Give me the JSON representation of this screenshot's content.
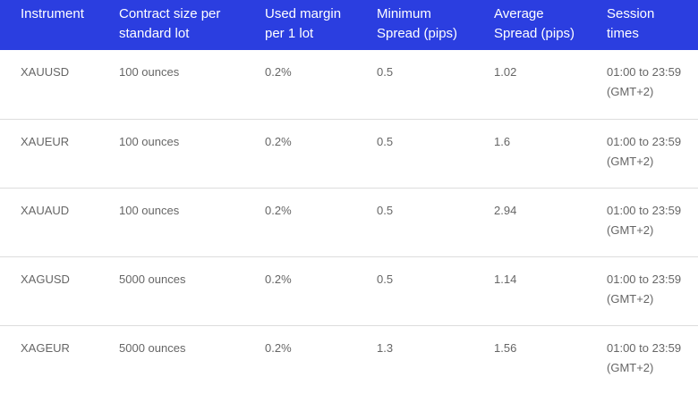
{
  "table": {
    "headers": [
      "Instrument",
      "Contract size per standard lot",
      "Used margin per 1 lot",
      "Minimum Spread (pips)",
      "Average Spread (pips)",
      "Session times"
    ],
    "rows": [
      [
        "XAUUSD",
        "100 ounces",
        "0.2%",
        "0.5",
        "1.02",
        "01:00 to 23:59 (GMT+2)"
      ],
      [
        "XAUEUR",
        "100 ounces",
        "0.2%",
        "0.5",
        "1.6",
        "01:00 to 23:59 (GMT+2)"
      ],
      [
        "XAUAUD",
        "100 ounces",
        "0.2%",
        "0.5",
        "2.94",
        "01:00 to 23:59 (GMT+2)"
      ],
      [
        "XAGUSD",
        "5000 ounces",
        "0.2%",
        "0.5",
        "1.14",
        "01:00 to 23:59 (GMT+2)"
      ],
      [
        "XAGEUR",
        "5000 ounces",
        "0.2%",
        "1.3",
        "1.56",
        "01:00 to 23:59 (GMT+2)"
      ]
    ]
  }
}
